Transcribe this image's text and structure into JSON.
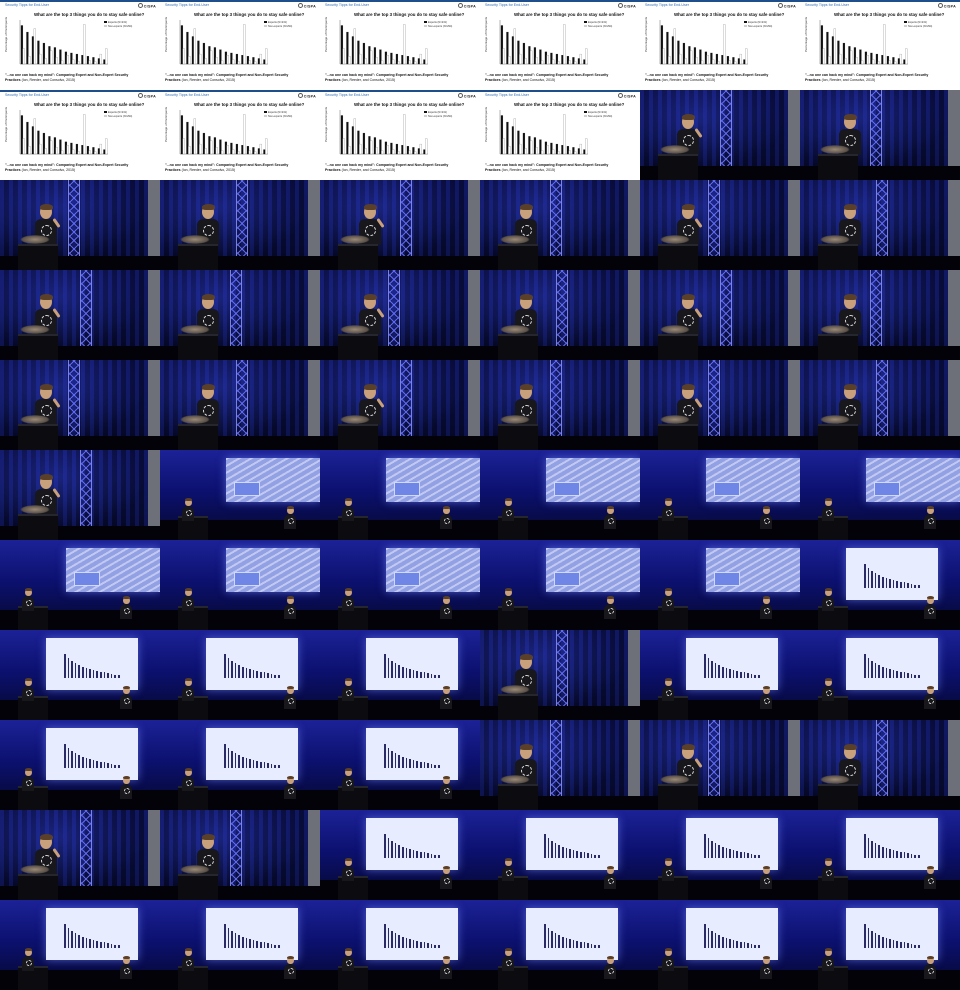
{
  "grid": {
    "columns": 6,
    "rows": 11
  },
  "slide": {
    "header_title": "Security Tipps for End-User",
    "logo_text": "CISPA",
    "question": "What are the top 3 things you do to stay safe online?",
    "y_axis_label": "Percentage of Participants",
    "legend": [
      {
        "label": "Experts (N=231)",
        "color": "#111111"
      },
      {
        "label": "Non-experts (N=294)",
        "color": "#cfcfcf"
      }
    ],
    "citation_title": "\"...no one can hack my mind\": Comparing Expert and Non-Expert Security Practices",
    "citation_authors": "(Ion, Reeder, and Consolvo, 2015)",
    "chart_data": {
      "type": "bar",
      "title": "What are the top 3 things you do to stay safe online?",
      "ylabel": "Percentage of Participants",
      "ylim": [
        0,
        40
      ],
      "series": [
        {
          "name": "Experts (N=231)",
          "values": [
            35,
            29,
            25,
            21,
            19,
            16,
            15,
            13,
            11,
            10,
            9,
            8,
            7,
            6,
            5,
            4
          ]
        },
        {
          "name": "Non-experts (N=294)",
          "values": [
            14,
            7,
            32,
            9,
            5,
            12,
            6,
            3,
            8,
            4,
            2,
            36,
            3,
            2,
            9,
            14
          ]
        }
      ]
    }
  },
  "thumbnails": [
    {
      "kind": "slide"
    },
    {
      "kind": "slide"
    },
    {
      "kind": "slide"
    },
    {
      "kind": "slide"
    },
    {
      "kind": "slide"
    },
    {
      "kind": "slide"
    },
    {
      "kind": "slide"
    },
    {
      "kind": "slide"
    },
    {
      "kind": "slide"
    },
    {
      "kind": "slide"
    },
    {
      "kind": "speaker"
    },
    {
      "kind": "speaker"
    },
    {
      "kind": "speaker"
    },
    {
      "kind": "speaker"
    },
    {
      "kind": "speaker"
    },
    {
      "kind": "speaker"
    },
    {
      "kind": "speaker"
    },
    {
      "kind": "speaker"
    },
    {
      "kind": "speaker"
    },
    {
      "kind": "speaker"
    },
    {
      "kind": "speaker"
    },
    {
      "kind": "speaker"
    },
    {
      "kind": "speaker"
    },
    {
      "kind": "speaker"
    },
    {
      "kind": "speaker"
    },
    {
      "kind": "speaker"
    },
    {
      "kind": "speaker"
    },
    {
      "kind": "speaker"
    },
    {
      "kind": "speaker"
    },
    {
      "kind": "speaker"
    },
    {
      "kind": "speaker"
    },
    {
      "kind": "wide-building"
    },
    {
      "kind": "wide-building"
    },
    {
      "kind": "wide-building"
    },
    {
      "kind": "wide-building"
    },
    {
      "kind": "wide-building"
    },
    {
      "kind": "wide-building"
    },
    {
      "kind": "wide-building"
    },
    {
      "kind": "wide-building"
    },
    {
      "kind": "wide-building"
    },
    {
      "kind": "wide-building"
    },
    {
      "kind": "wide-chart"
    },
    {
      "kind": "wide-chart"
    },
    {
      "kind": "wide-chart"
    },
    {
      "kind": "wide-chart"
    },
    {
      "kind": "speaker"
    },
    {
      "kind": "wide-chart"
    },
    {
      "kind": "wide-chart"
    },
    {
      "kind": "wide-chart"
    },
    {
      "kind": "wide-chart"
    },
    {
      "kind": "wide-chart"
    },
    {
      "kind": "speaker"
    },
    {
      "kind": "speaker"
    },
    {
      "kind": "speaker"
    },
    {
      "kind": "speaker"
    },
    {
      "kind": "speaker"
    },
    {
      "kind": "wide-chart"
    },
    {
      "kind": "wide-chart"
    },
    {
      "kind": "wide-chart"
    },
    {
      "kind": "wide-chart"
    },
    {
      "kind": "wide-chart"
    },
    {
      "kind": "wide-chart"
    },
    {
      "kind": "wide-chart"
    },
    {
      "kind": "wide-chart"
    },
    {
      "kind": "wide-chart"
    },
    {
      "kind": "wide-chart"
    }
  ]
}
